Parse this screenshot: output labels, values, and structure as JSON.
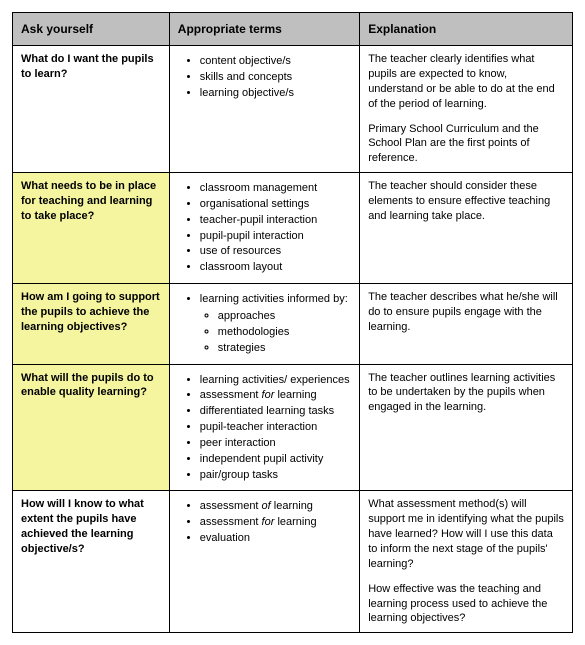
{
  "headers": {
    "ask": "Ask yourself",
    "terms": "Appropriate terms",
    "exp": "Explanation"
  },
  "rows": [
    {
      "highlight": false,
      "ask": "What do I want the pupils to learn?",
      "terms": [
        {
          "text": "content objective/s"
        },
        {
          "text": "skills and concepts"
        },
        {
          "text": "learning objective/s"
        }
      ],
      "exp": [
        "The teacher clearly identifies what pupils are expected to know, understand or be able to do at the end of the period of learning.",
        "Primary School Curriculum and the School Plan are the first points of reference."
      ]
    },
    {
      "highlight": true,
      "ask": "What needs to be in place for teaching and learning to take place?",
      "terms": [
        {
          "text": "classroom management"
        },
        {
          "text": "organisational settings"
        },
        {
          "text": "teacher-pupil interaction"
        },
        {
          "text": "pupil-pupil interaction"
        },
        {
          "text": "use of resources"
        },
        {
          "text": "classroom layout"
        }
      ],
      "exp": [
        "The teacher should consider these elements to ensure effective teaching and learning take place."
      ]
    },
    {
      "highlight": true,
      "ask": "How am I going to support the pupils to achieve the learning objectives?",
      "terms": [
        {
          "text": "learning activities informed by:",
          "sub": [
            "approaches",
            "methodologies",
            "strategies"
          ]
        }
      ],
      "exp": [
        "The teacher describes what he/she will do to ensure pupils engage with the learning."
      ]
    },
    {
      "highlight": true,
      "ask": "What will the pupils do to enable quality learning?",
      "terms": [
        {
          "text": "learning activities/ experiences"
        },
        {
          "html": "assessment <em>for</em> learning"
        },
        {
          "text": "differentiated learning tasks"
        },
        {
          "text": "pupil-teacher interaction"
        },
        {
          "text": "peer interaction"
        },
        {
          "text": "independent pupil activity"
        },
        {
          "text": "pair/group tasks"
        }
      ],
      "exp": [
        "The teacher outlines learning activities to be undertaken by the pupils when engaged in the learning."
      ]
    },
    {
      "highlight": false,
      "ask": "How will I know to what extent the pupils have achieved the learning objective/s?",
      "terms": [
        {
          "html": "assessment <em>of</em> learning"
        },
        {
          "html": "assessment <em>for</em> learning"
        },
        {
          "text": "evaluation"
        }
      ],
      "exp": [
        "What assessment method(s) will support me in identifying what the pupils have learned? How will I use this data to inform the next stage of the pupils' learning?",
        "How effective was the teaching and learning process used to achieve the learning objectives?"
      ]
    }
  ],
  "colors": {
    "header_bg": "#bfbfbf",
    "highlight_bg": "#f5f5a0",
    "border": "#000000",
    "background": "#ffffff"
  }
}
